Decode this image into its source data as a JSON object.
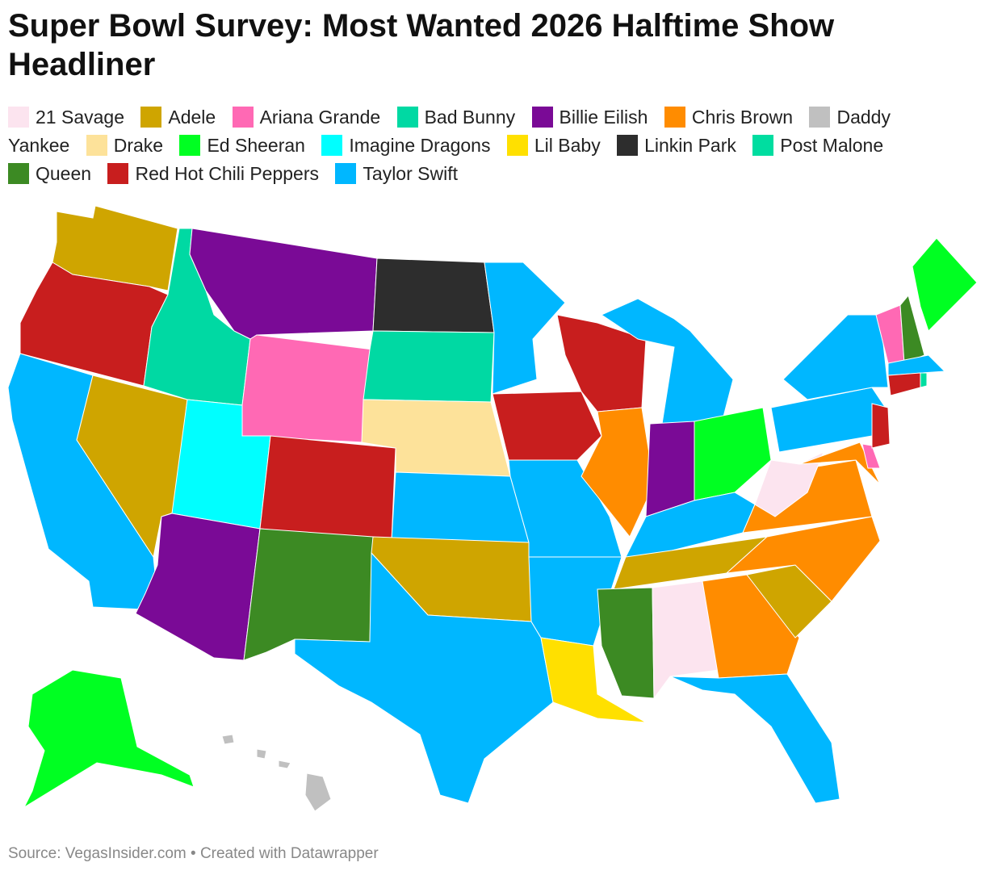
{
  "title": "Super Bowl Survey: Most Wanted 2026 Halftime Show Headliner",
  "legend": [
    {
      "name": "21 Savage",
      "color": "#fce4ef"
    },
    {
      "name": "Adele",
      "color": "#cfa500"
    },
    {
      "name": "Ariana Grande",
      "color": "#ff69b4"
    },
    {
      "name": "Bad Bunny",
      "color": "#00d9a3"
    },
    {
      "name": "Billie Eilish",
      "color": "#7a0a96"
    },
    {
      "name": "Chris Brown",
      "color": "#ff8c00"
    },
    {
      "name": "Daddy Yankee",
      "color": "#c0c0c0"
    },
    {
      "name": "Drake",
      "color": "#fde29a"
    },
    {
      "name": "Ed Sheeran",
      "color": "#00ff22"
    },
    {
      "name": "Imagine Dragons",
      "color": "#00ffff"
    },
    {
      "name": "Lil Baby",
      "color": "#ffe000"
    },
    {
      "name": "Linkin Park",
      "color": "#2d2d2d"
    },
    {
      "name": "Post Malone",
      "color": "#00dda0"
    },
    {
      "name": "Queen",
      "color": "#3c8a23"
    },
    {
      "name": "Red Hot Chili Peppers",
      "color": "#c81e1e"
    },
    {
      "name": "Taylor Swift",
      "color": "#00b7ff"
    }
  ],
  "source": "Source: VegasInsider.com • Created with Datawrapper"
}
